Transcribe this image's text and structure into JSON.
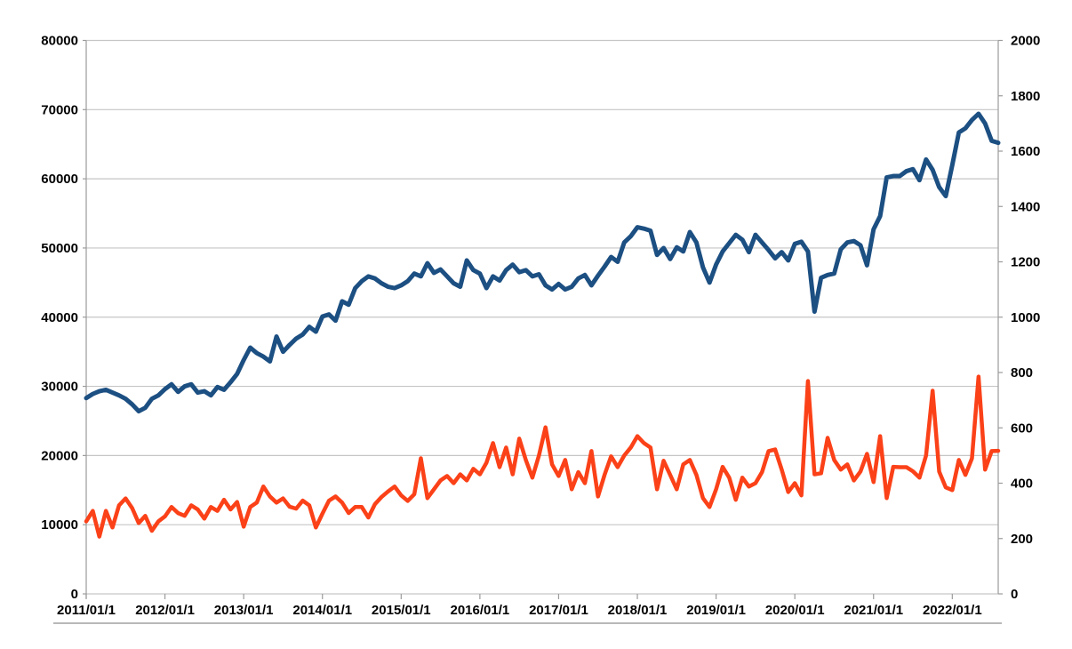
{
  "chart_data": {
    "type": "line",
    "title": "",
    "legend": "none",
    "background": "#ffffff",
    "grid": "horizontal-only",
    "gridline_color": "#c6c6c6",
    "axis_line_color": "#9b9b9b",
    "tick_label_color": "#000000",
    "x_axis": {
      "tick_labels": [
        "2011/01/1",
        "2012/01/1",
        "2013/01/1",
        "2014/01/1",
        "2015/01/1",
        "2016/01/1",
        "2017/01/1",
        "2018/01/1",
        "2019/01/1",
        "2020/01/1",
        "2021/01/1",
        "2022/01/1"
      ],
      "months_per_tick": 12,
      "n_points": 140
    },
    "left_axis": {
      "min": 0,
      "max": 80000,
      "step": 10000,
      "tick_labels": [
        "0",
        "10000",
        "20000",
        "30000",
        "40000",
        "50000",
        "60000",
        "70000",
        "80000"
      ]
    },
    "right_axis": {
      "min": 0,
      "max": 2000,
      "step": 200,
      "tick_labels": [
        "0",
        "200",
        "400",
        "600",
        "800",
        "1000",
        "1200",
        "1400",
        "1600",
        "1800",
        "2000"
      ]
    },
    "series": [
      {
        "name": "dark-blue-line",
        "axis": "left",
        "color": "#1C4F82",
        "stroke_width": 5,
        "values": [
          28300,
          28900,
          29300,
          29500,
          29100,
          28700,
          28200,
          27400,
          26400,
          26900,
          28200,
          28700,
          29600,
          30300,
          29200,
          30000,
          30300,
          29100,
          29300,
          28700,
          29900,
          29500,
          30600,
          31800,
          33800,
          35600,
          34800,
          34300,
          33600,
          37200,
          35000,
          36000,
          36900,
          37500,
          38600,
          37900,
          40100,
          40400,
          39500,
          42300,
          41800,
          44200,
          45200,
          45900,
          45600,
          44900,
          44400,
          44200,
          44600,
          45200,
          46300,
          45900,
          47800,
          46400,
          46900,
          45900,
          44900,
          44400,
          48200,
          46800,
          46300,
          44200,
          45900,
          45300,
          46800,
          47600,
          46500,
          46800,
          45900,
          46200,
          44600,
          44000,
          44800,
          44000,
          44400,
          45600,
          46100,
          44600,
          46000,
          47300,
          48700,
          48000,
          50800,
          51700,
          53000,
          52800,
          52500,
          49000,
          50000,
          48400,
          50100,
          49500,
          52300,
          50800,
          47200,
          45000,
          47600,
          49500,
          50700,
          51900,
          51200,
          49400,
          51900,
          50800,
          49700,
          48500,
          49400,
          48200,
          50600,
          50900,
          49500,
          40800,
          45700,
          46100,
          46300,
          49800,
          50800,
          51000,
          50400,
          47500,
          52700,
          54600,
          60200,
          60400,
          60400,
          61100,
          61400,
          59800,
          62800,
          61300,
          58800,
          57500,
          62000,
          66700,
          67300,
          68500,
          69400,
          68000,
          65500,
          65200
        ]
      },
      {
        "name": "orange-red-line",
        "axis": "right",
        "color": "#FB4118",
        "stroke_width": 4.5,
        "values": [
          262,
          300,
          207,
          300,
          240,
          320,
          345,
          310,
          256,
          282,
          228,
          262,
          280,
          314,
          292,
          282,
          320,
          305,
          272,
          314,
          300,
          340,
          305,
          332,
          243,
          314,
          330,
          388,
          352,
          330,
          345,
          315,
          308,
          337,
          320,
          240,
          290,
          337,
          352,
          330,
          292,
          314,
          314,
          276,
          324,
          350,
          370,
          388,
          356,
          336,
          360,
          490,
          346,
          378,
          410,
          426,
          400,
          432,
          410,
          452,
          432,
          474,
          545,
          458,
          529,
          432,
          561,
          484,
          420,
          500,
          602,
          468,
          426,
          484,
          378,
          440,
          400,
          516,
          352,
          430,
          497,
          458,
          500,
          529,
          570,
          545,
          529,
          378,
          481,
          430,
          378,
          468,
          484,
          430,
          346,
          314,
          378,
          459,
          420,
          340,
          420,
          388,
          400,
          440,
          516,
          522,
          449,
          368,
          400,
          356,
          769,
          432,
          436,
          564,
          484,
          449,
          468,
          410,
          442,
          506,
          404,
          570,
          346,
          459,
          458,
          458,
          443,
          420,
          500,
          734,
          442,
          385,
          375,
          484,
          430,
          490,
          785,
          449,
          516,
          517
        ]
      }
    ]
  }
}
